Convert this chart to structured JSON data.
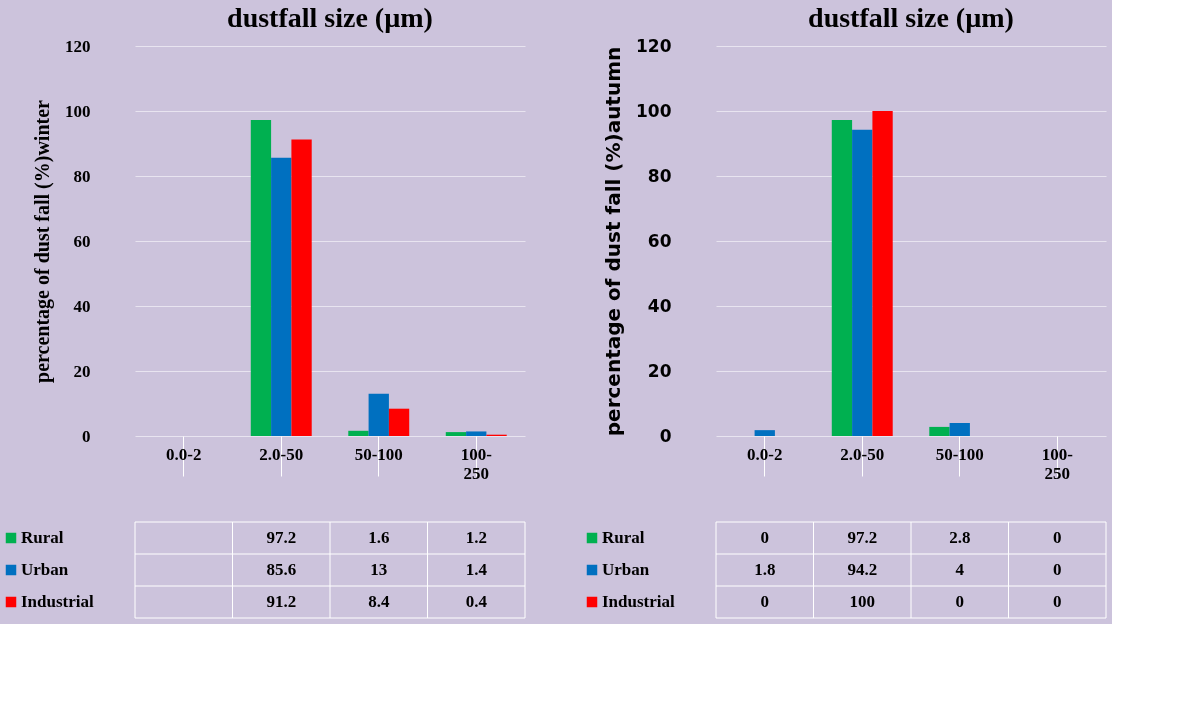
{
  "chart_data": [
    {
      "type": "bar",
      "title": "dustfall size (µm)",
      "ylabel": "percentage of dust fall (%)winter",
      "categories": [
        "0.0-2",
        "2.0-50",
        "50-100",
        "100-250"
      ],
      "ylim": [
        0,
        120
      ],
      "yticks": [
        0,
        20,
        40,
        60,
        80,
        100,
        120
      ],
      "grid": "y",
      "legend": "bottom",
      "data_labels": true,
      "series": [
        {
          "name": "Rural",
          "color": "#00b050",
          "values": [
            null,
            97.2,
            1.6,
            1.2
          ]
        },
        {
          "name": "Urban",
          "color": "#0070c0",
          "values": [
            null,
            85.6,
            13,
            1.4
          ]
        },
        {
          "name": "Industrial",
          "color": "#ff0000",
          "values": [
            null,
            91.2,
            8.4,
            0.4
          ]
        }
      ]
    },
    {
      "type": "bar",
      "title": "dustfall size (µm)",
      "ylabel": "percentage of dust fall (%)autumn",
      "categories": [
        "0.0-2",
        "2.0-50",
        "50-100",
        "100-250"
      ],
      "ylim": [
        0,
        120
      ],
      "yticks": [
        0,
        20,
        40,
        60,
        80,
        100,
        120
      ],
      "grid": "y",
      "legend": "bottom",
      "data_labels": true,
      "series": [
        {
          "name": "Rural",
          "color": "#00b050",
          "values": [
            0,
            97.2,
            2.8,
            0
          ]
        },
        {
          "name": "Urban",
          "color": "#0070c0",
          "values": [
            1.8,
            94.2,
            4,
            0
          ]
        },
        {
          "name": "Industrial",
          "color": "#ff0000",
          "values": [
            0,
            100,
            0,
            0
          ]
        }
      ]
    }
  ]
}
